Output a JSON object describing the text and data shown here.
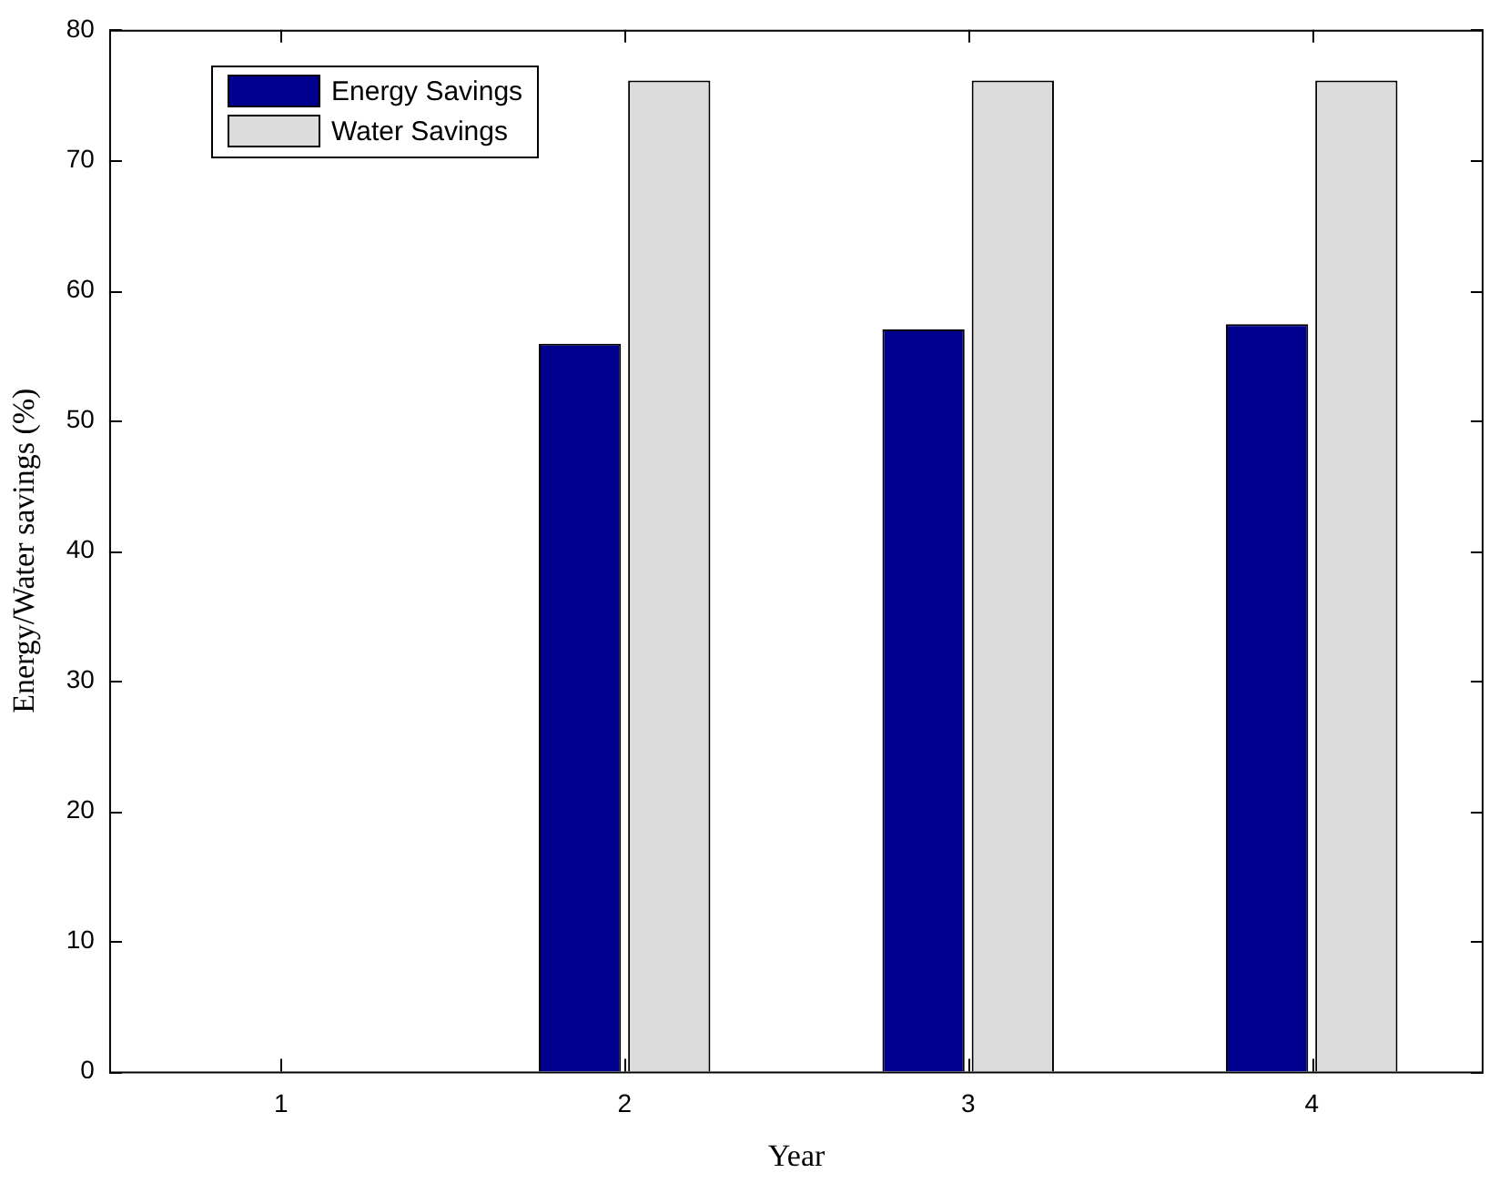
{
  "chart_data": {
    "type": "bar",
    "xlabel": "Year",
    "ylabel": "Energy/Water savings (%)",
    "categories": [
      "1",
      "2",
      "3",
      "4"
    ],
    "series": [
      {
        "name": "Energy Savings",
        "color": "#00008f",
        "values": [
          0,
          55.9,
          57.0,
          57.4
        ]
      },
      {
        "name": "Water Savings",
        "color": "#dcdcdc",
        "values": [
          0,
          76.1,
          76.1,
          76.1
        ]
      }
    ],
    "ylim": [
      0,
      80
    ],
    "yticks": [
      0,
      10,
      20,
      30,
      40,
      50,
      60,
      70,
      80
    ],
    "grid": false,
    "legend": "top left"
  }
}
